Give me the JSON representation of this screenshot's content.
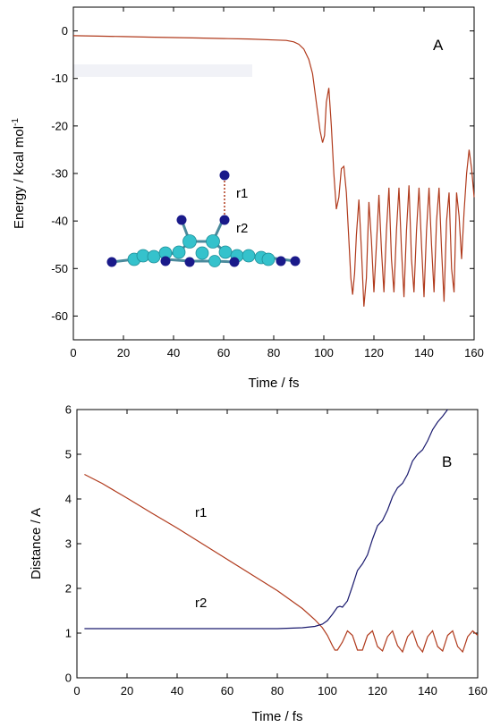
{
  "chart_data": [
    {
      "type": "line",
      "panel_label": "A",
      "xlabel": "Time / fs",
      "ylabel_main": "Energy / kcal mol",
      "ylabel_sup": "-1",
      "xlim": [
        0,
        160
      ],
      "ylim": [
        -65,
        5
      ],
      "xticks": [
        0,
        20,
        40,
        60,
        80,
        100,
        120,
        140,
        160
      ],
      "yticks": [
        0,
        -10,
        -20,
        -30,
        -40,
        -50,
        -60
      ],
      "grid": false,
      "colors": {
        "line": "#b03a1c",
        "ghost": "#eef0f6"
      },
      "series": [
        {
          "x": [
            0,
            10,
            20,
            30,
            40,
            50,
            60,
            70,
            80,
            85,
            88,
            90,
            92,
            94,
            95.5,
            96.5,
            97.5,
            98.5,
            99.5,
            100.3,
            101,
            102,
            103,
            104,
            105,
            106,
            107,
            108,
            109,
            110,
            110.8,
            111.5,
            112.3,
            113,
            114,
            115,
            116,
            117,
            118,
            119,
            120,
            121,
            122,
            123,
            124,
            125,
            126,
            127,
            128,
            129,
            130,
            131,
            132,
            133,
            134,
            135,
            136,
            137,
            138,
            139,
            140,
            141,
            142,
            143,
            144,
            145,
            146,
            147,
            148,
            149,
            150,
            151,
            152,
            153,
            154,
            155,
            156,
            157,
            158,
            159,
            160
          ],
          "values": [
            -1.0,
            -1.1,
            -1.2,
            -1.3,
            -1.4,
            -1.5,
            -1.6,
            -1.7,
            -1.9,
            -2.0,
            -2.3,
            -2.8,
            -3.8,
            -6.0,
            -9.0,
            -13.0,
            -17.0,
            -21.0,
            -23.5,
            -22.0,
            -15.0,
            -12.0,
            -20.0,
            -30.0,
            -37.5,
            -35.0,
            -29.0,
            -28.5,
            -34.0,
            -44.0,
            -52.0,
            -55.5,
            -51.0,
            -43.0,
            -35.5,
            -46.0,
            -58.0,
            -52.0,
            -36.0,
            -44.0,
            -55.0,
            -45.0,
            -34.5,
            -46.0,
            -55.0,
            -42.0,
            -33.0,
            -48.0,
            -55.0,
            -42.0,
            -33.0,
            -46.0,
            -56.0,
            -42.0,
            -32.5,
            -48.0,
            -55.0,
            -42.0,
            -33.0,
            -45.0,
            -56.0,
            -42.0,
            -33.0,
            -45.0,
            -55.0,
            -40.0,
            -33.0,
            -46.0,
            -57.0,
            -40.0,
            -34.0,
            -50.0,
            -55.0,
            -34.0,
            -39.0,
            -48.0,
            -38.0,
            -30.0,
            -25.0,
            -29.0,
            -35.0
          ]
        }
      ],
      "annotations": {
        "r1": "r1",
        "r2": "r2"
      }
    },
    {
      "type": "line",
      "panel_label": "B",
      "xlabel": "Time / fs",
      "ylabel": "Distance / A",
      "xlim": [
        0,
        160
      ],
      "ylim": [
        0,
        6
      ],
      "xticks": [
        0,
        20,
        40,
        60,
        80,
        100,
        120,
        140,
        160
      ],
      "yticks": [
        0,
        1,
        2,
        3,
        4,
        5,
        6
      ],
      "grid": false,
      "series": [
        {
          "name": "r1",
          "color": "#b03a1c",
          "x": [
            3,
            10,
            20,
            30,
            40,
            50,
            60,
            70,
            80,
            90,
            95,
            98,
            100,
            102,
            103,
            104,
            106,
            108,
            110,
            112,
            114,
            116,
            118,
            120,
            122,
            124,
            126,
            128,
            130,
            132,
            134,
            136,
            138,
            140,
            142,
            144,
            146,
            148,
            150,
            152,
            154,
            156,
            158,
            160
          ],
          "values": [
            4.55,
            4.35,
            4.02,
            3.68,
            3.35,
            3.0,
            2.65,
            2.3,
            1.95,
            1.55,
            1.3,
            1.12,
            0.95,
            0.72,
            0.62,
            0.62,
            0.8,
            1.05,
            0.95,
            0.62,
            0.62,
            0.95,
            1.05,
            0.7,
            0.6,
            0.92,
            1.05,
            0.72,
            0.58,
            0.92,
            1.05,
            0.72,
            0.58,
            0.92,
            1.05,
            0.7,
            0.6,
            0.95,
            1.05,
            0.7,
            0.58,
            0.92,
            1.05,
            0.95
          ]
        },
        {
          "name": "r2",
          "color": "#1a1a6e",
          "x": [
            3,
            20,
            40,
            60,
            80,
            90,
            95,
            98,
            100,
            102,
            104,
            105,
            106,
            108,
            110,
            112,
            114,
            116,
            118,
            120,
            122,
            124,
            126,
            128,
            130,
            132,
            134,
            136,
            138,
            140,
            142,
            144,
            146,
            148
          ],
          "values": [
            1.1,
            1.1,
            1.1,
            1.1,
            1.1,
            1.12,
            1.15,
            1.2,
            1.28,
            1.42,
            1.58,
            1.6,
            1.58,
            1.72,
            2.05,
            2.4,
            2.55,
            2.75,
            3.1,
            3.4,
            3.52,
            3.75,
            4.05,
            4.25,
            4.35,
            4.55,
            4.85,
            5.0,
            5.1,
            5.3,
            5.55,
            5.72,
            5.85,
            6.0
          ]
        }
      ],
      "annotations": {
        "r1": "r1",
        "r2": "r2"
      }
    }
  ]
}
